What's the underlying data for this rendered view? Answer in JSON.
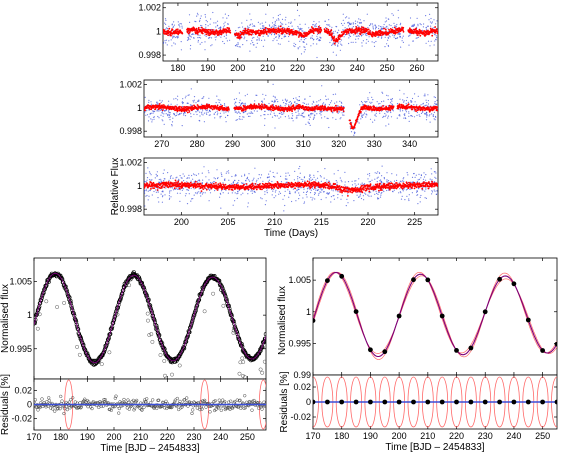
{
  "colors": {
    "raw_points": "#3b4fd8",
    "binned_points": "#ff0000",
    "model_line": "#7a007a",
    "model_band": "#ff6a6a",
    "data_points": "#000000"
  },
  "chart_data": [
    {
      "id": "top_1",
      "type": "scatter",
      "xlim": [
        175,
        267
      ],
      "ylim": [
        0.9975,
        1.0024
      ],
      "xticks": [
        180,
        190,
        200,
        210,
        220,
        230,
        240,
        250,
        260
      ],
      "yticks": [
        {
          "v": 1.002,
          "label": "1.002"
        },
        {
          "v": 1.0,
          "label": "1"
        },
        {
          "v": 0.998,
          "label": "0.998"
        }
      ],
      "series": [
        {
          "role": "raw",
          "scatter": 0.0009
        },
        {
          "role": "binned",
          "scatter": 0.00012
        }
      ],
      "dips": [
        {
          "x": 200,
          "depth": 0.0004
        },
        {
          "x": 222,
          "depth": 0.0003
        },
        {
          "x": 233,
          "depth": 0.0007
        },
        {
          "x": 245,
          "depth": 0.0002
        }
      ],
      "gaps": [
        [
          181.5,
          183
        ],
        [
          197.5,
          199
        ],
        [
          228,
          229
        ],
        [
          255.5,
          257
        ]
      ]
    },
    {
      "id": "top_2",
      "type": "scatter",
      "xlim": [
        265,
        348
      ],
      "ylim": [
        0.9975,
        1.0024
      ],
      "xticks": [
        270,
        280,
        290,
        300,
        310,
        320,
        330,
        340
      ],
      "yticks": [
        {
          "v": 1.002,
          "label": "1.002"
        },
        {
          "v": 1.0,
          "label": "1"
        },
        {
          "v": 0.998,
          "label": "0.998"
        }
      ],
      "series": [
        {
          "role": "raw",
          "scatter": 0.0008
        },
        {
          "role": "binned",
          "scatter": 0.0001
        }
      ],
      "dips": [
        {
          "x": 324,
          "depth": 0.0018
        },
        {
          "x": 312,
          "depth": 0.0002
        }
      ],
      "gaps": [
        [
          289,
          290.5
        ],
        [
          321.5,
          323
        ],
        [
          335.5,
          336.5
        ]
      ]
    },
    {
      "id": "top_3",
      "type": "scatter",
      "xlim": [
        196,
        227.5
      ],
      "ylim": [
        0.9975,
        1.0024
      ],
      "xticks": [
        200,
        205,
        210,
        215,
        220,
        225
      ],
      "yticks": [
        {
          "v": 1.002,
          "label": "1.002"
        },
        {
          "v": 1.0,
          "label": "1"
        },
        {
          "v": 0.998,
          "label": "0.998"
        }
      ],
      "ylabel": "Relative Flux",
      "xlabel": "Time (Days)",
      "series": [
        {
          "role": "raw",
          "scatter": 0.0009
        },
        {
          "role": "binned",
          "scatter": 0.00013
        }
      ],
      "dips": [
        {
          "x": 218,
          "depth": 0.0003
        }
      ],
      "gaps": []
    },
    {
      "id": "bottom_left",
      "type": "scatter",
      "xlim": [
        170,
        257
      ],
      "ylim": [
        0.9905,
        1.0085
      ],
      "xticks": [
        170,
        180,
        190,
        200,
        210,
        220,
        230,
        240,
        250
      ],
      "yticks": [
        {
          "v": 1.005,
          "label": "1.005"
        },
        {
          "v": 1.0,
          "label": "1"
        },
        {
          "v": 0.995,
          "label": "0.995"
        }
      ],
      "ylabel": "Normalised flux",
      "series": [
        {
          "role": "data",
          "marker": "circle"
        },
        {
          "role": "model"
        }
      ],
      "model": {
        "mean": 0.9995,
        "amplitude": 0.0068,
        "phase": 168,
        "period": 29.5,
        "decay": 0.0014
      }
    },
    {
      "id": "bottom_left_residuals",
      "type": "scatter",
      "xlim": [
        170,
        257
      ],
      "ylim": [
        -0.036,
        0.036
      ],
      "xticks": [
        170,
        180,
        190,
        200,
        210,
        220,
        230,
        240,
        250
      ],
      "xticklabels": [
        "170",
        "180",
        "190",
        "200",
        "210",
        "220",
        "230",
        "240",
        "250"
      ],
      "yticks": [
        {
          "v": 0.02,
          "label": "0.02"
        },
        {
          "v": 0.0,
          "label": "0"
        },
        {
          "v": -0.02,
          "label": "-0.02"
        }
      ],
      "ylabel": "Residuals [%]",
      "xlabel": "Time [BJD – 2454833]",
      "bands": [
        183,
        234,
        256
      ]
    },
    {
      "id": "bottom_right",
      "type": "line",
      "xlim": [
        170,
        255
      ],
      "ylim": [
        0.99,
        1.0085
      ],
      "xticks": [
        170,
        180,
        190,
        200,
        210,
        220,
        230,
        240,
        250
      ],
      "yticks": [
        {
          "v": 1.005,
          "label": "1.005"
        },
        {
          "v": 1.0,
          "label": "1"
        },
        {
          "v": 0.995,
          "label": "0.995"
        },
        {
          "v": 0.99,
          "label": "0.99"
        }
      ],
      "ylabel": "Normalised flux",
      "knots": [
        170,
        175,
        180,
        185,
        190,
        195,
        200,
        205,
        210,
        215,
        220,
        225,
        230,
        235,
        240,
        245,
        250,
        255
      ],
      "model": {
        "mean": 0.9995,
        "amplitude": 0.0068,
        "phase": 168,
        "period": 29.5,
        "decay": 0.0014
      }
    },
    {
      "id": "bottom_right_residuals",
      "type": "scatter",
      "xlim": [
        170,
        255
      ],
      "ylim": [
        -0.036,
        0.036
      ],
      "xticks": [
        170,
        180,
        190,
        200,
        210,
        220,
        230,
        240,
        250
      ],
      "xticklabels": [
        "170",
        "180",
        "190",
        "200",
        "210",
        "220",
        "230",
        "240",
        "250"
      ],
      "yticks": [
        {
          "v": 0.02,
          "label": "0.02"
        },
        {
          "v": 0.0,
          "label": "0"
        },
        {
          "v": -0.02,
          "label": "-0.02"
        }
      ],
      "ylabel": "Residuals [%]",
      "xlabel": "Time [BJD – 2454833]",
      "knots": [
        170,
        175,
        180,
        185,
        190,
        195,
        200,
        205,
        210,
        215,
        220,
        225,
        230,
        235,
        240,
        245,
        250,
        255
      ]
    }
  ]
}
